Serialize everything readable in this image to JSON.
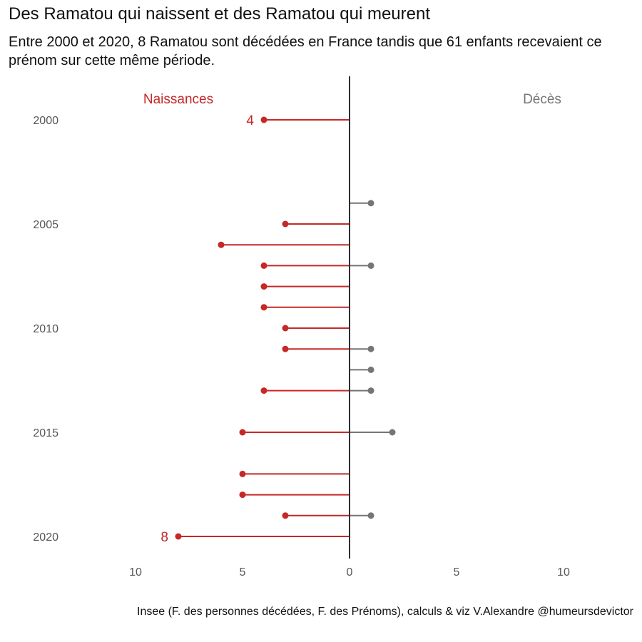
{
  "title": "Des Ramatou qui naissent et des Ramatou qui meurent",
  "subtitle": "Entre 2000 et 2020, 8 Ramatou sont décédées en France tandis que 61 enfants recevaient ce prénom sur cette même période.",
  "caption": "Insee (F. des personnes décédées, F. des Prénoms), calculs & viz V.Alexandre @humeursdevictor",
  "colors": {
    "births": "#c62828",
    "deaths": "#757575",
    "axis": "#2b2f36",
    "tick": "#555555"
  },
  "chart_data": {
    "type": "lollipop",
    "orientation": "horizontal",
    "y": [
      2000,
      2001,
      2002,
      2003,
      2004,
      2005,
      2006,
      2007,
      2008,
      2009,
      2010,
      2011,
      2012,
      2013,
      2014,
      2015,
      2016,
      2017,
      2018,
      2019,
      2020
    ],
    "series": [
      {
        "name": "Naissances",
        "side": "left",
        "values": [
          4,
          0,
          0,
          0,
          0,
          3,
          6,
          4,
          4,
          4,
          3,
          3,
          0,
          4,
          0,
          5,
          0,
          5,
          5,
          3,
          8
        ]
      },
      {
        "name": "Décès",
        "side": "right",
        "values": [
          0,
          0,
          0,
          0,
          1,
          0,
          0,
          1,
          0,
          0,
          0,
          1,
          1,
          1,
          0,
          2,
          0,
          0,
          0,
          1,
          0
        ]
      }
    ],
    "labeled_points": [
      {
        "series": "Naissances",
        "year": 2000,
        "label": "4"
      },
      {
        "series": "Naissances",
        "year": 2020,
        "label": "8"
      }
    ],
    "x_ticks": [
      {
        "value": -10,
        "label": "10"
      },
      {
        "value": -5,
        "label": "5"
      },
      {
        "value": 0,
        "label": "0"
      },
      {
        "value": 5,
        "label": "5"
      },
      {
        "value": 10,
        "label": "10"
      }
    ],
    "y_ticks": [
      2000,
      2005,
      2010,
      2015,
      2020
    ],
    "xlim": [
      -10,
      10
    ],
    "ylim": [
      2000,
      2020
    ],
    "grid": false
  }
}
